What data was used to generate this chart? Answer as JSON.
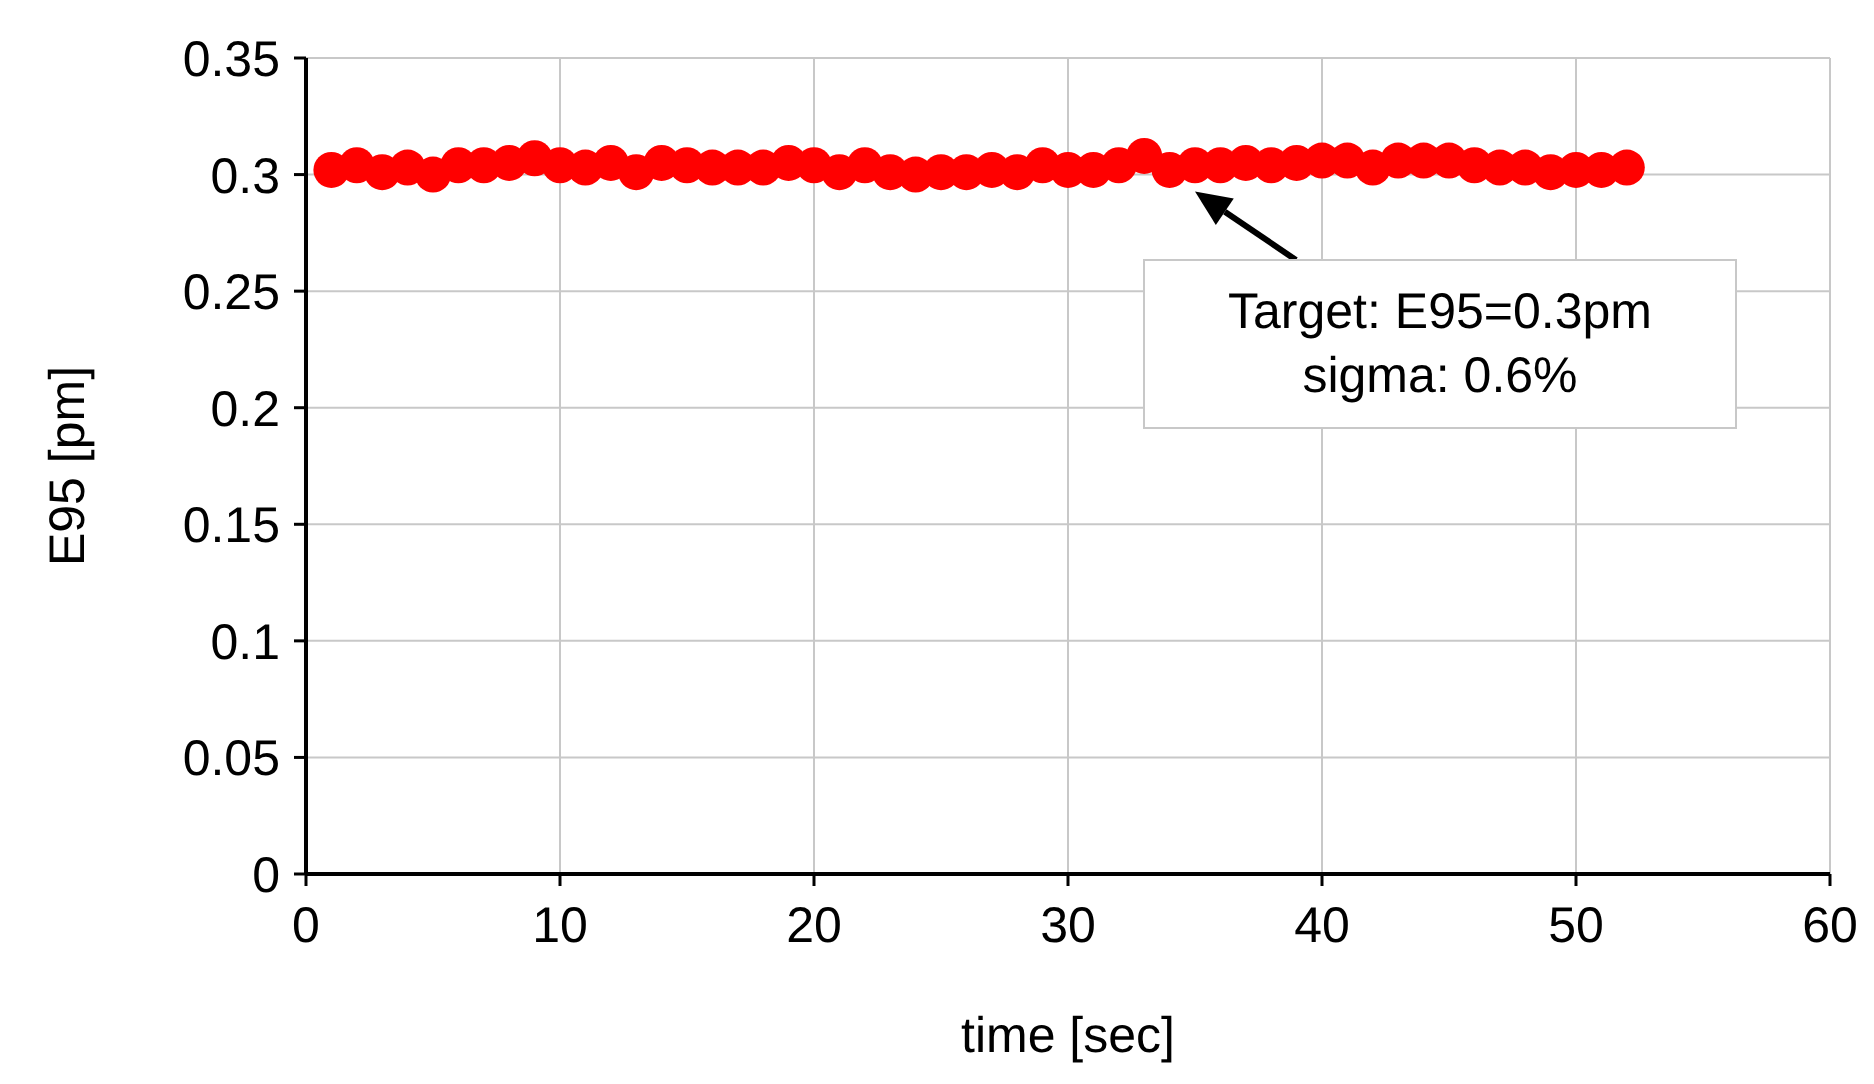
{
  "chart_data": {
    "type": "scatter",
    "xlabel": "time [sec]",
    "ylabel": "E95 [pm]",
    "x": [
      1,
      2,
      3,
      4,
      5,
      6,
      7,
      8,
      9,
      10,
      11,
      12,
      13,
      14,
      15,
      16,
      17,
      18,
      19,
      20,
      21,
      22,
      23,
      24,
      25,
      26,
      27,
      28,
      29,
      30,
      31,
      32,
      33,
      34,
      35,
      36,
      37,
      38,
      39,
      40,
      41,
      42,
      43,
      44,
      45,
      46,
      47,
      48,
      49,
      50,
      51,
      52
    ],
    "series": [
      {
        "color": "#ff0000",
        "values": [
          0.302,
          0.304,
          0.301,
          0.303,
          0.3,
          0.304,
          0.304,
          0.305,
          0.307,
          0.304,
          0.303,
          0.305,
          0.301,
          0.305,
          0.304,
          0.303,
          0.303,
          0.303,
          0.305,
          0.304,
          0.301,
          0.304,
          0.301,
          0.3,
          0.301,
          0.301,
          0.302,
          0.301,
          0.304,
          0.302,
          0.302,
          0.304,
          0.308,
          0.302,
          0.304,
          0.304,
          0.305,
          0.304,
          0.305,
          0.306,
          0.306,
          0.303,
          0.306,
          0.306,
          0.306,
          0.304,
          0.303,
          0.303,
          0.301,
          0.302,
          0.302,
          0.303
        ]
      }
    ],
    "xlim": [
      0,
      60
    ],
    "xticks": [
      0,
      10,
      20,
      30,
      40,
      50,
      60
    ],
    "ylim": [
      0,
      0.35
    ],
    "yticks": [
      0,
      0.05,
      0.1,
      0.15,
      0.2,
      0.25,
      0.3,
      0.35
    ],
    "grid": true,
    "marker": "circle",
    "annotations": [
      {
        "text": "Target: E95=0.3pm\nsigma: 0.6%",
        "x": 35,
        "y": 0.303
      }
    ]
  }
}
